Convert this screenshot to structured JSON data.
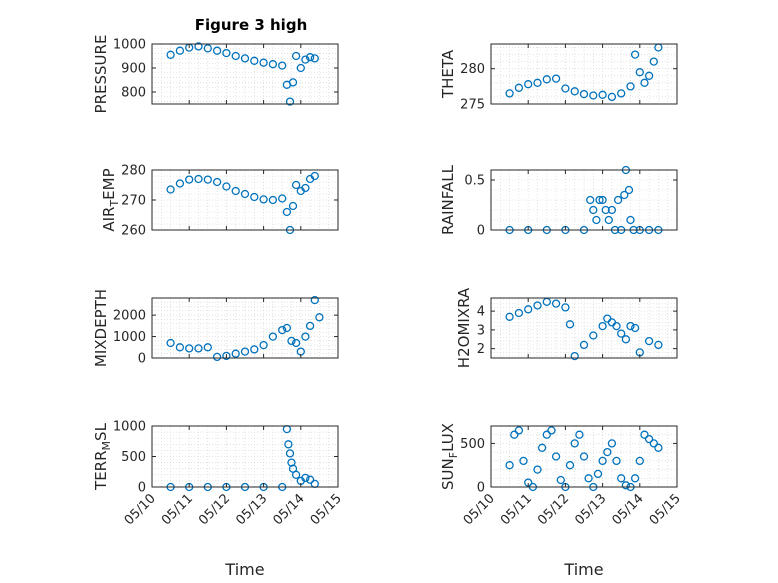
{
  "figure_title": "Figure 3 high",
  "colors": {
    "marker": "#0072BD",
    "axis": "#262626",
    "grid": "#d0d0d0",
    "background": "#ffffff"
  },
  "chart_data": [
    {
      "type": "scatter",
      "ylabel_text": "PRESSURE",
      "ylabel_sub": "",
      "ylabel_tail": "",
      "ylim": [
        750,
        1000
      ],
      "yticks": [
        800,
        900,
        1000
      ],
      "ytick_labels": [
        "800",
        "900",
        "1000"
      ],
      "xlim": [
        "05/10",
        "05/15"
      ],
      "xtick_labels": [
        "05/10",
        "05/11",
        "05/12",
        "05/13",
        "05/14",
        "05/15"
      ],
      "show_xticklabels": false,
      "xlabel": "",
      "grid": true,
      "marker": "o",
      "x": [
        "05/10 12:00",
        "05/10 18:00",
        "05/11 00:00",
        "05/11 06:00",
        "05/11 12:00",
        "05/11 18:00",
        "05/12 00:00",
        "05/12 06:00",
        "05/12 12:00",
        "05/12 18:00",
        "05/13 00:00",
        "05/13 06:00",
        "05/13 12:00",
        "05/13 15:00",
        "05/13 17:00",
        "05/13 19:00",
        "05/13 21:00",
        "05/14 00:00",
        "05/14 03:00",
        "05/14 06:00",
        "05/14 09:00"
      ],
      "y": [
        955,
        972,
        985,
        990,
        982,
        972,
        962,
        950,
        940,
        930,
        922,
        916,
        910,
        830,
        760,
        840,
        950,
        900,
        935,
        945,
        940
      ]
    },
    {
      "type": "scatter",
      "ylabel_text": "THETA",
      "ylabel_sub": "",
      "ylabel_tail": "",
      "ylim": [
        275,
        283.5
      ],
      "yticks": [
        275,
        280
      ],
      "ytick_labels": [
        "275",
        "280"
      ],
      "xlim": [
        "05/10",
        "05/15"
      ],
      "xtick_labels": [
        "05/10",
        "05/11",
        "05/12",
        "05/13",
        "05/14",
        "05/15"
      ],
      "show_xticklabels": false,
      "xlabel": "",
      "grid": true,
      "marker": "o",
      "x": [
        "05/10 12:00",
        "05/10 18:00",
        "05/11 00:00",
        "05/11 06:00",
        "05/11 12:00",
        "05/11 18:00",
        "05/12 00:00",
        "05/12 06:00",
        "05/12 12:00",
        "05/12 18:00",
        "05/13 00:00",
        "05/13 06:00",
        "05/13 12:00",
        "05/13 18:00",
        "05/13 21:00",
        "05/14 00:00",
        "05/14 03:00",
        "05/14 06:00",
        "05/14 09:00",
        "05/14 12:00"
      ],
      "y": [
        276.5,
        277.3,
        277.8,
        278.0,
        278.5,
        278.6,
        277.2,
        276.8,
        276.4,
        276.2,
        276.3,
        276.0,
        276.5,
        277.5,
        282.0,
        279.5,
        278.0,
        279.0,
        281.0,
        283.0
      ]
    },
    {
      "type": "scatter",
      "ylabel_text": "AIR",
      "ylabel_sub": "T",
      "ylabel_tail": "EMP",
      "ylim": [
        260,
        280
      ],
      "yticks": [
        260,
        270,
        280
      ],
      "ytick_labels": [
        "260",
        "270",
        "280"
      ],
      "xlim": [
        "05/10",
        "05/15"
      ],
      "xtick_labels": [
        "05/10",
        "05/11",
        "05/12",
        "05/13",
        "05/14",
        "05/15"
      ],
      "show_xticklabels": false,
      "xlabel": "",
      "grid": true,
      "marker": "o",
      "x": [
        "05/10 12:00",
        "05/10 18:00",
        "05/11 00:00",
        "05/11 06:00",
        "05/11 12:00",
        "05/11 18:00",
        "05/12 00:00",
        "05/12 06:00",
        "05/12 12:00",
        "05/12 18:00",
        "05/13 00:00",
        "05/13 06:00",
        "05/13 12:00",
        "05/13 15:00",
        "05/13 17:00",
        "05/13 19:00",
        "05/13 21:00",
        "05/14 00:00",
        "05/14 03:00",
        "05/14 06:00",
        "05/14 09:00"
      ],
      "y": [
        273.5,
        275.5,
        276.8,
        277.0,
        276.8,
        276.0,
        274.5,
        273.0,
        272.0,
        271.0,
        270.2,
        270.0,
        270.5,
        266.0,
        260.0,
        268.0,
        275.0,
        273.0,
        274.0,
        277.0,
        278.0
      ]
    },
    {
      "type": "scatter",
      "ylabel_text": "RAINFALL",
      "ylabel_sub": "",
      "ylabel_tail": "",
      "ylim": [
        0,
        0.6
      ],
      "yticks": [
        0,
        0.5
      ],
      "ytick_labels": [
        "0",
        "0.5"
      ],
      "xlim": [
        "05/10",
        "05/15"
      ],
      "xtick_labels": [
        "05/10",
        "05/11",
        "05/12",
        "05/13",
        "05/14",
        "05/15"
      ],
      "show_xticklabels": false,
      "xlabel": "",
      "grid": true,
      "marker": "o",
      "x": [
        "05/10 12:00",
        "05/11 00:00",
        "05/11 12:00",
        "05/12 00:00",
        "05/12 12:00",
        "05/12 16:00",
        "05/12 18:00",
        "05/12 20:00",
        "05/12 22:00",
        "05/13 00:00",
        "05/13 02:00",
        "05/13 04:00",
        "05/13 06:00",
        "05/13 08:00",
        "05/13 10:00",
        "05/13 12:00",
        "05/13 14:00",
        "05/13 15:00",
        "05/13 17:00",
        "05/13 18:00",
        "05/13 20:00",
        "05/14 00:00",
        "05/14 06:00",
        "05/14 12:00"
      ],
      "y": [
        0,
        0,
        0,
        0,
        0,
        0.3,
        0.2,
        0.1,
        0.3,
        0.3,
        0.2,
        0.1,
        0.2,
        0,
        0.3,
        0,
        0.35,
        0.6,
        0.4,
        0.1,
        0,
        0,
        0,
        0
      ]
    },
    {
      "type": "scatter",
      "ylabel_text": "MIXDEPTH",
      "ylabel_sub": "",
      "ylabel_tail": "",
      "ylim": [
        0,
        2800
      ],
      "yticks": [
        0,
        1000,
        2000
      ],
      "ytick_labels": [
        "0",
        "1000",
        "2000"
      ],
      "xlim": [
        "05/10",
        "05/15"
      ],
      "xtick_labels": [
        "05/10",
        "05/11",
        "05/12",
        "05/13",
        "05/14",
        "05/15"
      ],
      "show_xticklabels": false,
      "xlabel": "",
      "grid": true,
      "marker": "o",
      "x": [
        "05/10 12:00",
        "05/10 18:00",
        "05/11 00:00",
        "05/11 06:00",
        "05/11 12:00",
        "05/11 18:00",
        "05/12 00:00",
        "05/12 06:00",
        "05/12 12:00",
        "05/12 18:00",
        "05/13 00:00",
        "05/13 06:00",
        "05/13 12:00",
        "05/13 15:00",
        "05/13 18:00",
        "05/13 21:00",
        "05/14 00:00",
        "05/14 03:00",
        "05/14 06:00",
        "05/14 09:00",
        "05/14 12:00"
      ],
      "y": [
        700,
        500,
        450,
        450,
        500,
        50,
        100,
        200,
        300,
        400,
        600,
        1000,
        1300,
        1400,
        800,
        700,
        300,
        1000,
        1500,
        2700,
        1900
      ]
    },
    {
      "type": "scatter",
      "ylabel_text": "H2OMIXRA",
      "ylabel_sub": "",
      "ylabel_tail": "",
      "ylim": [
        1.5,
        4.7
      ],
      "yticks": [
        2,
        3,
        4
      ],
      "ytick_labels": [
        "2",
        "3",
        "4"
      ],
      "xlim": [
        "05/10",
        "05/15"
      ],
      "xtick_labels": [
        "05/10",
        "05/11",
        "05/12",
        "05/13",
        "05/14",
        "05/15"
      ],
      "show_xticklabels": false,
      "xlabel": "",
      "grid": true,
      "marker": "o",
      "x": [
        "05/10 12:00",
        "05/10 18:00",
        "05/11 00:00",
        "05/11 06:00",
        "05/11 12:00",
        "05/11 18:00",
        "05/12 00:00",
        "05/12 03:00",
        "05/12 06:00",
        "05/12 12:00",
        "05/12 18:00",
        "05/13 00:00",
        "05/13 03:00",
        "05/13 06:00",
        "05/13 09:00",
        "05/13 12:00",
        "05/13 15:00",
        "05/13 18:00",
        "05/13 21:00",
        "05/14 00:00",
        "05/14 06:00",
        "05/14 12:00"
      ],
      "y": [
        3.7,
        3.9,
        4.1,
        4.3,
        4.5,
        4.4,
        4.2,
        3.3,
        1.6,
        2.2,
        2.7,
        3.2,
        3.6,
        3.4,
        3.2,
        2.8,
        2.5,
        3.2,
        3.1,
        1.8,
        2.4,
        2.2
      ]
    },
    {
      "type": "scatter",
      "ylabel_text": "TERR",
      "ylabel_sub": "M",
      "ylabel_tail": "SL",
      "ylim": [
        0,
        1000
      ],
      "yticks": [
        0,
        500,
        1000
      ],
      "ytick_labels": [
        "0",
        "500",
        "1000"
      ],
      "xlim": [
        "05/10",
        "05/15"
      ],
      "xtick_labels": [
        "05/10",
        "05/11",
        "05/12",
        "05/13",
        "05/14",
        "05/15"
      ],
      "show_xticklabels": true,
      "xlabel": "Time",
      "grid": true,
      "marker": "o",
      "x": [
        "05/10 12:00",
        "05/11 00:00",
        "05/11 12:00",
        "05/12 00:00",
        "05/12 12:00",
        "05/13 00:00",
        "05/13 12:00",
        "05/13 15:00",
        "05/13 16:00",
        "05/13 17:00",
        "05/13 18:00",
        "05/13 19:00",
        "05/13 21:00",
        "05/14 00:00",
        "05/14 03:00",
        "05/14 06:00",
        "05/14 09:00"
      ],
      "y": [
        0,
        0,
        0,
        0,
        0,
        0,
        0,
        950,
        700,
        550,
        400,
        300,
        200,
        100,
        150,
        120,
        50
      ]
    },
    {
      "type": "scatter",
      "ylabel_text": "SUN",
      "ylabel_sub": "F",
      "ylabel_tail": "LUX",
      "ylim": [
        0,
        700
      ],
      "yticks": [
        0,
        500
      ],
      "ytick_labels": [
        "0",
        "500"
      ],
      "xlim": [
        "05/10",
        "05/15"
      ],
      "xtick_labels": [
        "05/10",
        "05/11",
        "05/12",
        "05/13",
        "05/14",
        "05/15"
      ],
      "show_xticklabels": true,
      "xlabel": "Time",
      "grid": true,
      "marker": "o",
      "x": [
        "05/10 12:00",
        "05/10 15:00",
        "05/10 18:00",
        "05/10 21:00",
        "05/11 00:00",
        "05/11 03:00",
        "05/11 06:00",
        "05/11 09:00",
        "05/11 12:00",
        "05/11 15:00",
        "05/11 18:00",
        "05/11 21:00",
        "05/12 00:00",
        "05/12 03:00",
        "05/12 06:00",
        "05/12 09:00",
        "05/12 12:00",
        "05/12 15:00",
        "05/12 18:00",
        "05/12 21:00",
        "05/13 00:00",
        "05/13 03:00",
        "05/13 06:00",
        "05/13 09:00",
        "05/13 12:00",
        "05/13 15:00",
        "05/13 18:00",
        "05/13 21:00",
        "05/14 00:00",
        "05/14 03:00",
        "05/14 06:00",
        "05/14 09:00",
        "05/14 12:00"
      ],
      "y": [
        250,
        600,
        650,
        300,
        50,
        0,
        200,
        450,
        600,
        650,
        350,
        80,
        0,
        250,
        500,
        600,
        350,
        100,
        0,
        150,
        300,
        400,
        500,
        300,
        100,
        20,
        0,
        100,
        300,
        600,
        550,
        500,
        450
      ]
    }
  ]
}
